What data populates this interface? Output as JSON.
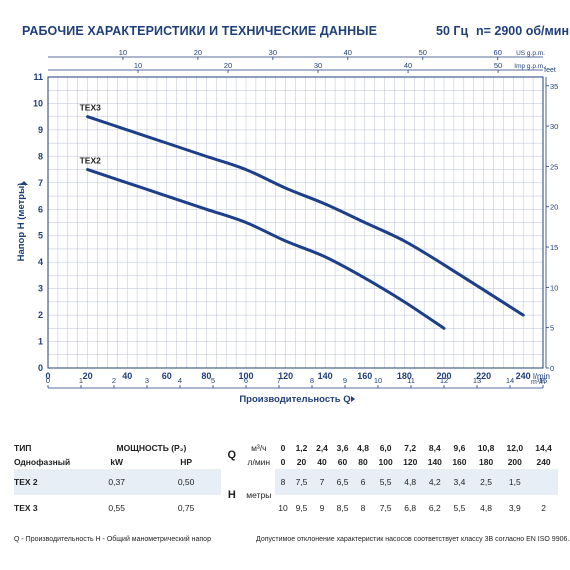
{
  "header": {
    "title": "РАБОЧИЕ ХАРАКТЕРИСТИКИ И ТЕХНИЧЕСКИЕ ДАННЫЕ",
    "frequency": "50 Гц",
    "speed": "n= 2900 об/мин"
  },
  "chart_data": {
    "type": "line",
    "xlabel": "Производительность Q",
    "ylabel": "Напор H (метры)",
    "x_unit": "l/min",
    "xlim": [
      0,
      250
    ],
    "ylim": [
      0,
      11
    ],
    "x_ticks": [
      0,
      20,
      40,
      60,
      80,
      100,
      120,
      140,
      160,
      180,
      200,
      220,
      240
    ],
    "y_ticks": [
      0,
      1,
      2,
      3,
      4,
      5,
      6,
      7,
      8,
      9,
      10,
      11
    ],
    "top_axes": [
      {
        "unit": "US g.p.m.",
        "ticks": [
          10,
          20,
          30,
          40,
          50,
          60
        ]
      },
      {
        "unit": "Imp g.p.m.",
        "ticks": [
          10,
          20,
          30,
          40,
          50
        ]
      }
    ],
    "bottom_axis2": {
      "unit": "m³/h",
      "ticks": [
        0,
        1,
        2,
        3,
        4,
        5,
        6,
        7,
        8,
        9,
        10,
        11,
        12,
        13,
        14,
        15
      ]
    },
    "right_axis": {
      "unit": "feet",
      "ticks": [
        0,
        5,
        10,
        15,
        20,
        25,
        30,
        35
      ]
    },
    "grid": true,
    "series": [
      {
        "name": "TEX3",
        "x": [
          20,
          40,
          60,
          80,
          100,
          120,
          140,
          160,
          180,
          200,
          240
        ],
        "y": [
          9.5,
          9,
          8.5,
          8,
          7.5,
          6.8,
          6.2,
          5.5,
          4.8,
          3.9,
          2
        ]
      },
      {
        "name": "TEX2",
        "x": [
          20,
          40,
          60,
          80,
          100,
          120,
          140,
          160,
          180,
          200
        ],
        "y": [
          7.5,
          7,
          6.5,
          6,
          5.5,
          4.8,
          4.2,
          3.4,
          2.5,
          1.5
        ]
      }
    ]
  },
  "colors": {
    "curve": "#1d3f8a",
    "grid": "#b8c2d4",
    "axis": "#1f3f7a",
    "row_highlight": "#e8eef6"
  },
  "table": {
    "type_label": "ТИП",
    "power_label": "МОЩНОСТЬ (P₂)",
    "q_label": "Q",
    "q_unit1": "м³/ч",
    "q_unit2": "л/мин",
    "single_phase": "Однофазный",
    "kw": "kW",
    "hp": "HP",
    "h_label": "H",
    "h_unit": "метры",
    "q_m3h": [
      "0",
      "1,2",
      "2,4",
      "3,6",
      "4,8",
      "6,0",
      "7,2",
      "8,4",
      "9,6",
      "10,8",
      "12,0",
      "14,4"
    ],
    "q_lmin": [
      "0",
      "20",
      "40",
      "60",
      "80",
      "100",
      "120",
      "140",
      "160",
      "180",
      "200",
      "240"
    ],
    "rows": [
      {
        "model": "TEX 2",
        "kw": "0,37",
        "hp": "0,50",
        "h": [
          "8",
          "7,5",
          "7",
          "6,5",
          "6",
          "5,5",
          "4,8",
          "4,2",
          "3,4",
          "2,5",
          "1,5",
          ""
        ]
      },
      {
        "model": "TEX 3",
        "kw": "0,55",
        "hp": "0,75",
        "h": [
          "10",
          "9,5",
          "9",
          "8,5",
          "8",
          "7,5",
          "6,8",
          "6,2",
          "5,5",
          "4,8",
          "3,9",
          "2"
        ]
      }
    ]
  },
  "footer": {
    "legend": "Q - Производительность   H - Общий манометрический напор",
    "tolerance": "Допустимое отклонение характеристик насосов соответствует классу 3B согласно EN ISO 9906."
  }
}
